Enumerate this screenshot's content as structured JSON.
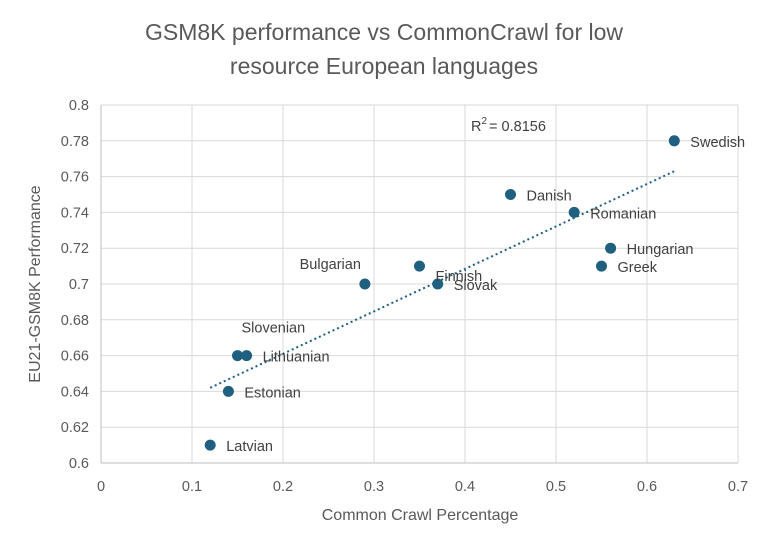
{
  "chart_data": {
    "type": "scatter",
    "title_lines": [
      "GSM8K performance vs CommonCrawl for low",
      "resource European languages"
    ],
    "xlabel": "Common Crawl Percentage",
    "ylabel": "EU21-GSM8K Performance",
    "xlim": [
      0,
      0.7
    ],
    "ylim": [
      0.6,
      0.8
    ],
    "x_ticks": [
      "0",
      "0.1",
      "0.2",
      "0.3",
      "0.4",
      "0.5",
      "0.6",
      "0.7"
    ],
    "y_ticks": [
      "0.6",
      "0.62",
      "0.64",
      "0.66",
      "0.68",
      "0.7",
      "0.72",
      "0.74",
      "0.76",
      "0.78",
      "0.8"
    ],
    "grid": true,
    "marker_color": "#1f5f7f",
    "trendline": {
      "type": "linear",
      "style": "dotted",
      "color": "#1f5f7f",
      "x_range": [
        0.12,
        0.63
      ],
      "y_range": [
        0.642,
        0.763
      ]
    },
    "r_squared_text": "= 0.8156",
    "r_squared_prefix": "R",
    "r_squared_sup": "2",
    "points": [
      {
        "label": "Swedish",
        "x": 0.63,
        "y": 0.78
      },
      {
        "label": "Danish",
        "x": 0.45,
        "y": 0.75
      },
      {
        "label": "Romanian",
        "x": 0.52,
        "y": 0.74
      },
      {
        "label": "Hungarian",
        "x": 0.56,
        "y": 0.72
      },
      {
        "label": "Greek",
        "x": 0.55,
        "y": 0.71
      },
      {
        "label": "Finnish",
        "x": 0.35,
        "y": 0.71
      },
      {
        "label": "Bulgarian",
        "x": 0.29,
        "y": 0.7
      },
      {
        "label": "Slovak",
        "x": 0.37,
        "y": 0.7
      },
      {
        "label": "Slovenian",
        "x": 0.15,
        "y": 0.66
      },
      {
        "label": "Lithuanian",
        "x": 0.16,
        "y": 0.66
      },
      {
        "label": "Estonian",
        "x": 0.14,
        "y": 0.64
      },
      {
        "label": "Latvian",
        "x": 0.12,
        "y": 0.61
      }
    ]
  }
}
